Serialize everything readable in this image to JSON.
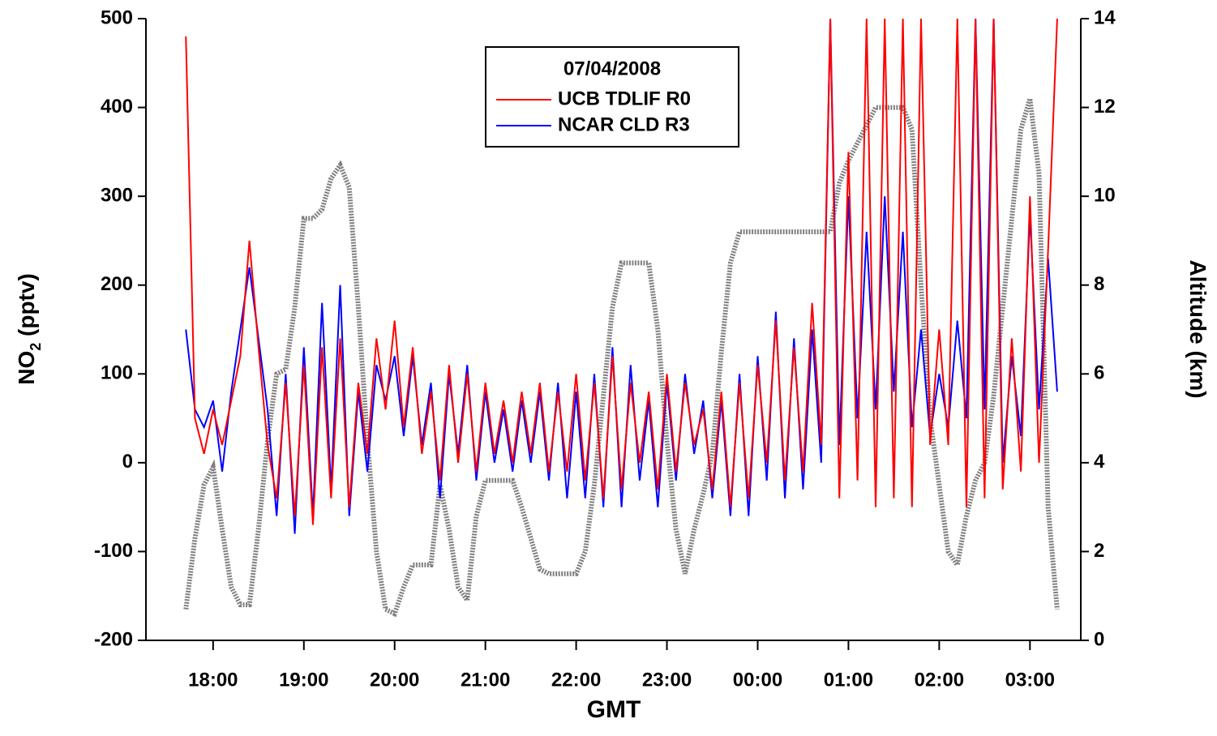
{
  "chart_data": {
    "type": "line",
    "xlabel": "GMT",
    "ylabel_parts": [
      "NO",
      "2",
      " (pptv)"
    ],
    "y2label": "Altitude (km)",
    "legend_title": "07/04/2008",
    "xlim": [
      17.26,
      27.56
    ],
    "xticks": [
      {
        "value": 18,
        "label": "18:00"
      },
      {
        "value": 19,
        "label": "19:00"
      },
      {
        "value": 20,
        "label": "20:00"
      },
      {
        "value": 21,
        "label": "21:00"
      },
      {
        "value": 22,
        "label": "22:00"
      },
      {
        "value": 23,
        "label": "23:00"
      },
      {
        "value": 24,
        "label": "00:00"
      },
      {
        "value": 25,
        "label": "01:00"
      },
      {
        "value": 26,
        "label": "02:00"
      },
      {
        "value": 27,
        "label": "03:00"
      }
    ],
    "ylim": [
      -200,
      500
    ],
    "yticks": [
      -200,
      -100,
      0,
      100,
      200,
      300,
      400,
      500
    ],
    "y2lim": [
      0,
      14
    ],
    "y2ticks": [
      0,
      2,
      4,
      6,
      8,
      10,
      12,
      14
    ],
    "x": [
      17.7,
      17.8,
      17.9,
      18.0,
      18.1,
      18.2,
      18.3,
      18.4,
      18.5,
      18.6,
      18.7,
      18.8,
      18.9,
      19.0,
      19.1,
      19.2,
      19.3,
      19.4,
      19.5,
      19.6,
      19.7,
      19.8,
      19.9,
      20.0,
      20.1,
      20.2,
      20.3,
      20.4,
      20.5,
      20.6,
      20.7,
      20.8,
      20.9,
      21.0,
      21.1,
      21.2,
      21.3,
      21.4,
      21.5,
      21.6,
      21.7,
      21.8,
      21.9,
      22.0,
      22.1,
      22.2,
      22.3,
      22.4,
      22.5,
      22.6,
      22.7,
      22.8,
      22.9,
      23.0,
      23.1,
      23.2,
      23.3,
      23.4,
      23.5,
      23.6,
      23.7,
      23.8,
      23.9,
      24.0,
      24.1,
      24.2,
      24.3,
      24.4,
      24.5,
      24.6,
      24.7,
      24.8,
      24.9,
      25.0,
      25.1,
      25.2,
      25.3,
      25.4,
      25.5,
      25.6,
      25.7,
      25.8,
      25.9,
      26.0,
      26.1,
      26.2,
      26.3,
      26.4,
      26.5,
      26.6,
      26.7,
      26.8,
      26.9,
      27.0,
      27.1,
      27.2,
      27.3
    ],
    "series": [
      {
        "name": "UCB TDLIF R0",
        "color": "#ff0000",
        "values": [
          480,
          50,
          10,
          60,
          20,
          70,
          120,
          250,
          130,
          20,
          -40,
          90,
          -60,
          110,
          -70,
          130,
          -40,
          140,
          -50,
          90,
          10,
          140,
          60,
          160,
          40,
          130,
          10,
          80,
          -20,
          110,
          0,
          100,
          -10,
          90,
          10,
          70,
          0,
          80,
          10,
          90,
          -10,
          80,
          -10,
          100,
          -20,
          90,
          -40,
          120,
          -30,
          90,
          0,
          80,
          -30,
          100,
          -10,
          90,
          20,
          60,
          -30,
          80,
          -50,
          90,
          -40,
          110,
          0,
          160,
          -20,
          130,
          -10,
          180,
          20,
          500,
          -40,
          350,
          -20,
          500,
          -50,
          500,
          -40,
          500,
          -50,
          500,
          20,
          150,
          20,
          500,
          -50,
          500,
          -40,
          500,
          -30,
          140,
          -10,
          300,
          0,
          240,
          500
        ]
      },
      {
        "name": "NCAR CLD R3",
        "color": "#0000ff",
        "values": [
          150,
          60,
          40,
          70,
          -10,
          80,
          150,
          220,
          140,
          60,
          -60,
          100,
          -80,
          130,
          -60,
          180,
          -30,
          200,
          -60,
          80,
          -10,
          110,
          70,
          120,
          30,
          120,
          20,
          90,
          -40,
          100,
          10,
          110,
          -20,
          80,
          0,
          60,
          -10,
          70,
          0,
          80,
          -20,
          90,
          -40,
          80,
          -40,
          100,
          -50,
          130,
          -50,
          110,
          -20,
          70,
          -50,
          90,
          -20,
          100,
          10,
          70,
          -40,
          70,
          -60,
          100,
          -60,
          120,
          -20,
          170,
          -40,
          140,
          -30,
          150,
          0,
          500,
          20,
          300,
          50,
          260,
          60,
          300,
          80,
          260,
          40,
          150,
          30,
          100,
          40,
          160,
          50,
          500,
          60,
          500,
          0,
          120,
          30,
          280,
          60,
          230,
          80
        ]
      }
    ],
    "altitude": {
      "color": "#808080",
      "axis": "y2",
      "values": [
        0.7,
        2.3,
        3.5,
        3.9,
        2.5,
        1.2,
        0.8,
        0.8,
        2.5,
        4.5,
        6.0,
        6.1,
        7.5,
        9.5,
        9.5,
        9.7,
        10.4,
        10.7,
        10.2,
        7.5,
        4.5,
        2.0,
        0.7,
        0.6,
        1.2,
        1.7,
        1.7,
        1.7,
        3.5,
        2.5,
        1.2,
        0.9,
        2.8,
        3.6,
        3.6,
        3.6,
        3.6,
        3.0,
        2.3,
        1.6,
        1.5,
        1.5,
        1.5,
        1.5,
        2.0,
        3.5,
        5.5,
        7.5,
        8.5,
        8.5,
        8.5,
        8.5,
        7.0,
        4.5,
        2.5,
        1.5,
        2.5,
        3.3,
        4.2,
        6.5,
        8.5,
        9.2,
        9.2,
        9.2,
        9.2,
        9.2,
        9.2,
        9.2,
        9.2,
        9.2,
        9.2,
        9.2,
        10.3,
        10.8,
        11.2,
        11.6,
        12.0,
        12.0,
        12.0,
        12.0,
        11.5,
        8.0,
        5.0,
        3.5,
        2.0,
        1.7,
        2.8,
        3.6,
        4.0,
        5.5,
        7.5,
        9.5,
        11.5,
        12.2,
        10.5,
        3.0,
        0.7
      ]
    }
  }
}
